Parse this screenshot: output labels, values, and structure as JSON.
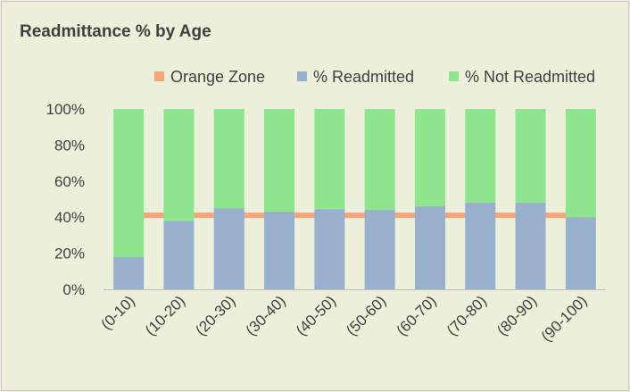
{
  "chart_data": {
    "type": "bar",
    "stacked": true,
    "title": "Readmittance % by Age",
    "categories": [
      "(0-10)",
      "(10-20)",
      "(20-30)",
      "(30-40)",
      "(40-50)",
      "(50-60)",
      "(60-70)",
      "(70-80)",
      "(80-90)",
      "(90-100)"
    ],
    "series": [
      {
        "name": "% Readmitted",
        "color": "#98b0cc",
        "values": [
          18,
          38,
          45,
          43,
          44.5,
          44,
          46,
          48,
          48,
          40
        ]
      },
      {
        "name": "% Not Readmitted",
        "color": "#8ee58e",
        "values": [
          82,
          62,
          55,
          57,
          55.5,
          56,
          54,
          52,
          52,
          60
        ]
      }
    ],
    "reference_line": {
      "name": "Orange Zone",
      "color": "#f6a47b",
      "value": 41
    },
    "legend_order": [
      "Orange Zone",
      "% Readmitted",
      "% Not Readmitted"
    ],
    "ylim": [
      0,
      100
    ],
    "yticks": [
      "0%",
      "20%",
      "40%",
      "60%",
      "80%",
      "100%"
    ],
    "ytick_values": [
      0,
      20,
      40,
      60,
      80,
      100
    ],
    "legend_position": "top-right",
    "grid": false
  }
}
